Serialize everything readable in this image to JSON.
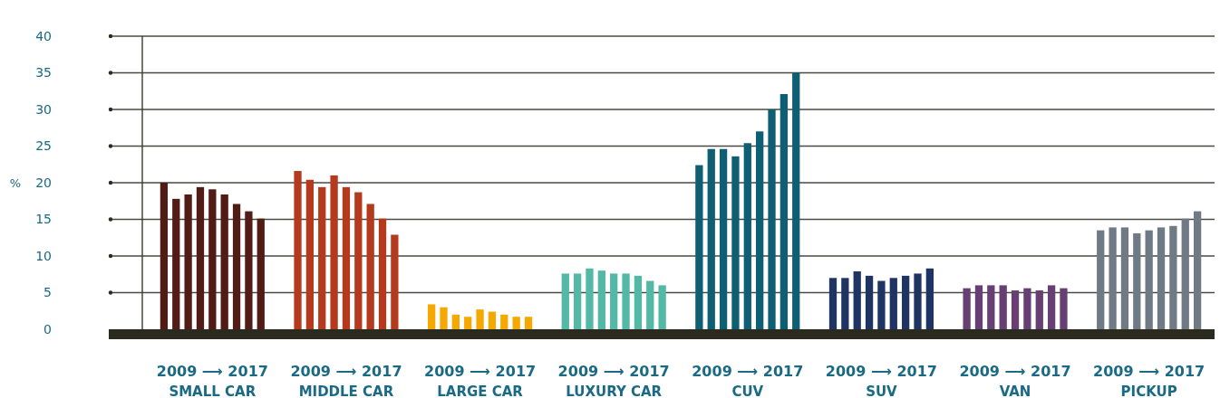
{
  "chart_data": {
    "type": "bar",
    "ylabel": "%",
    "categories": [
      "SMALL CAR",
      "MIDDLE CAR",
      "LARGE CAR",
      "LUXURY CAR",
      "CUV",
      "SUV",
      "VAN",
      "PICKUP"
    ],
    "series": [
      {
        "colors": [
          "#521c16",
          "#b5391c",
          "#f5a800",
          "#53b8a5",
          "#0e5e74",
          "#203463",
          "#683f73",
          "#6f7a85"
        ],
        "values": [
          20.0,
          21.6,
          3.4,
          7.6,
          22.4,
          7.0,
          5.6,
          13.5
        ]
      },
      {
        "colors": [
          "#521c16",
          "#b5391c",
          "#f5a800",
          "#53b8a5",
          "#0e5e74",
          "#203463",
          "#683f73",
          "#6f7a85"
        ],
        "values": [
          17.8,
          20.4,
          3.0,
          7.6,
          24.6,
          7.0,
          6.0,
          13.9
        ]
      },
      {
        "colors": [
          "#521c16",
          "#b5391c",
          "#f5a800",
          "#53b8a5",
          "#0e5e74",
          "#203463",
          "#683f73",
          "#6f7a85"
        ],
        "values": [
          18.4,
          19.4,
          2.0,
          8.3,
          24.6,
          7.9,
          6.0,
          13.9
        ]
      },
      {
        "colors": [
          "#521c16",
          "#b5391c",
          "#f5a800",
          "#53b8a5",
          "#0e5e74",
          "#203463",
          "#683f73",
          "#6f7a85"
        ],
        "values": [
          19.4,
          21.0,
          1.7,
          8.0,
          23.6,
          7.3,
          6.0,
          13.1
        ]
      },
      {
        "colors": [
          "#521c16",
          "#b5391c",
          "#f5a800",
          "#53b8a5",
          "#0e5e74",
          "#203463",
          "#683f73",
          "#6f7a85"
        ],
        "values": [
          19.1,
          19.4,
          2.7,
          7.6,
          25.4,
          6.6,
          5.3,
          13.5
        ]
      },
      {
        "colors": [
          "#521c16",
          "#b5391c",
          "#f5a800",
          "#53b8a5",
          "#0e5e74",
          "#203463",
          "#683f73",
          "#6f7a85"
        ],
        "values": [
          18.4,
          18.7,
          2.4,
          7.6,
          27.0,
          7.0,
          5.6,
          13.9
        ]
      },
      {
        "colors": [
          "#521c16",
          "#b5391c",
          "#f5a800",
          "#53b8a5",
          "#0e5e74",
          "#203463",
          "#683f73",
          "#6f7a85"
        ],
        "values": [
          17.1,
          17.1,
          2.0,
          7.3,
          30.0,
          7.3,
          5.3,
          14.1
        ]
      },
      {
        "colors": [
          "#521c16",
          "#b5391c",
          "#f5a800",
          "#53b8a5",
          "#0e5e74",
          "#203463",
          "#683f73",
          "#6f7a85"
        ],
        "values": [
          16.1,
          15.1,
          1.7,
          6.6,
          32.1,
          7.6,
          6.0,
          15.1
        ]
      },
      {
        "colors": [
          "#521c16",
          "#b5391c",
          "#f5a800",
          "#53b8a5",
          "#0e5e74",
          "#203463",
          "#683f73",
          "#6f7a85"
        ],
        "values": [
          15.1,
          12.9,
          1.7,
          6.0,
          35.0,
          8.3,
          5.6,
          16.1
        ]
      }
    ],
    "annotations": [
      "2009 ⟶ 2017",
      "2009 ⟶ 2017",
      "2009 ⟶ 2017",
      "2009 ⟶ 2017",
      "2009 ⟶ 2017",
      "2009 ⟶ 2017",
      "2009 ⟶ 2017",
      "2009 ⟶ 2017"
    ],
    "ylim": [
      0,
      40
    ],
    "yticks": [
      0,
      5,
      10,
      15,
      20,
      25,
      30,
      35,
      40
    ],
    "grid": "y"
  }
}
